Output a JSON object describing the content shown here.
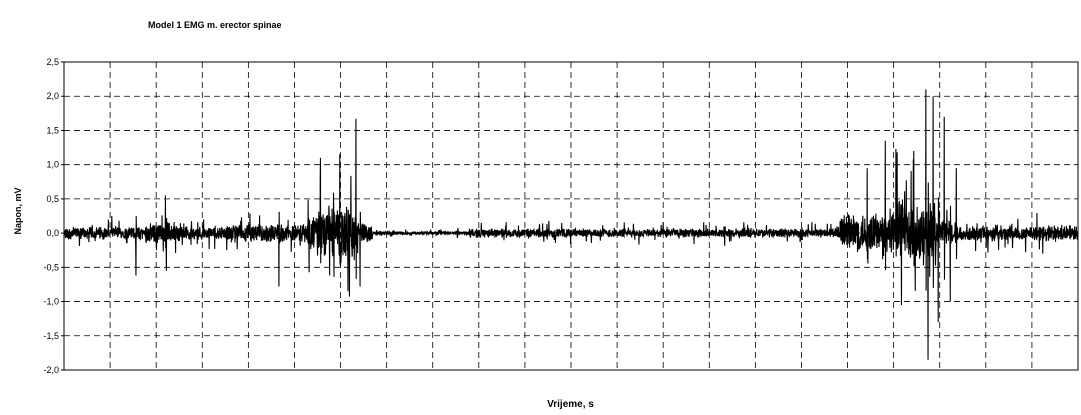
{
  "chart_data": {
    "type": "line",
    "title": "Model 1 EMG m. erector spinae",
    "xlabel": "Vrijeme, s",
    "ylabel": "Napon, mV",
    "ylim": [
      -2.0,
      2.5
    ],
    "yticks": [
      "2,5",
      "2,0",
      "1,5",
      "1,0",
      "0,5",
      "0,0",
      "-0,5",
      "-1,0",
      "-1,5",
      "-2,0"
    ],
    "ytick_values": [
      2.5,
      2.0,
      1.5,
      1.0,
      0.5,
      0.0,
      -0.5,
      -1.0,
      -1.5,
      -2.0
    ],
    "xlim": [
      0,
      1
    ],
    "x_gridlines": 22,
    "grid": "dashed",
    "legend": "none",
    "line_color": "#000000",
    "series": [
      {
        "bursts": [
          {
            "x": [
              0.0,
              0.08
            ],
            "amp": 0.28
          },
          {
            "x": [
              0.08,
              0.12
            ],
            "amp": 0.45
          },
          {
            "x": [
              0.12,
              0.16
            ],
            "amp": 0.3
          },
          {
            "x": [
              0.16,
              0.24
            ],
            "amp": 0.4
          },
          {
            "x": [
              0.24,
              0.25
            ],
            "amp": 0.8
          },
          {
            "x": [
              0.25,
              0.29
            ],
            "amp": 1.2
          },
          {
            "x": [
              0.29,
              0.305
            ],
            "amp": 0.45
          },
          {
            "x": [
              0.305,
              0.4
            ],
            "amp": 0.08
          },
          {
            "x": [
              0.4,
              0.7
            ],
            "amp": 0.2
          },
          {
            "x": [
              0.7,
              0.765
            ],
            "amp": 0.2
          },
          {
            "x": [
              0.765,
              0.82
            ],
            "amp": 0.9
          },
          {
            "x": [
              0.82,
              0.86
            ],
            "amp": 1.4
          },
          {
            "x": [
              0.86,
              0.88
            ],
            "amp": 0.6
          },
          {
            "x": [
              0.88,
              1.0
            ],
            "amp": 0.35
          }
        ],
        "peaks": [
          {
            "x": 0.071,
            "y": -0.62
          },
          {
            "x": 0.1,
            "y": 0.55
          },
          {
            "x": 0.101,
            "y": -0.55
          },
          {
            "x": 0.212,
            "y": -0.78
          },
          {
            "x": 0.253,
            "y": 1.1
          },
          {
            "x": 0.262,
            "y": -0.62
          },
          {
            "x": 0.272,
            "y": 1.15
          },
          {
            "x": 0.28,
            "y": -0.85
          },
          {
            "x": 0.288,
            "y": 1.67
          },
          {
            "x": 0.292,
            "y": -0.78
          },
          {
            "x": 0.792,
            "y": 0.95
          },
          {
            "x": 0.81,
            "y": 1.35
          },
          {
            "x": 0.826,
            "y": -1.05
          },
          {
            "x": 0.838,
            "y": 1.2
          },
          {
            "x": 0.85,
            "y": 2.1
          },
          {
            "x": 0.852,
            "y": -1.85
          },
          {
            "x": 0.857,
            "y": 2.0
          },
          {
            "x": 0.862,
            "y": -1.3
          },
          {
            "x": 0.868,
            "y": 1.7
          },
          {
            "x": 0.874,
            "y": -1.0
          },
          {
            "x": 0.88,
            "y": 0.95
          }
        ]
      }
    ]
  }
}
